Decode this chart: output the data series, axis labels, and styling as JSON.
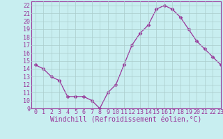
{
  "x": [
    0,
    1,
    2,
    3,
    4,
    5,
    6,
    7,
    8,
    9,
    10,
    11,
    12,
    13,
    14,
    15,
    16,
    17,
    18,
    19,
    20,
    21,
    22,
    23
  ],
  "y": [
    14.5,
    14.0,
    13.0,
    12.5,
    10.5,
    10.5,
    10.5,
    10.0,
    9.0,
    11.0,
    12.0,
    14.5,
    17.0,
    18.5,
    19.5,
    21.5,
    22.0,
    21.5,
    20.5,
    19.0,
    17.5,
    16.5,
    15.5,
    14.5
  ],
  "line_color": "#993399",
  "marker": "D",
  "marker_size": 2.5,
  "bg_color": "#c8eef0",
  "grid_color": "#aacccc",
  "xlabel": "Windchill (Refroidissement éolien,°C)",
  "ylim": [
    9,
    22.5
  ],
  "xlim": [
    -0.5,
    23
  ],
  "yticks": [
    9,
    10,
    11,
    12,
    13,
    14,
    15,
    16,
    17,
    18,
    19,
    20,
    21,
    22
  ],
  "xticks": [
    0,
    1,
    2,
    3,
    4,
    5,
    6,
    7,
    8,
    9,
    10,
    11,
    12,
    13,
    14,
    15,
    16,
    17,
    18,
    19,
    20,
    21,
    22,
    23
  ],
  "tick_color": "#993399",
  "label_fontsize": 7,
  "tick_fontsize": 6
}
